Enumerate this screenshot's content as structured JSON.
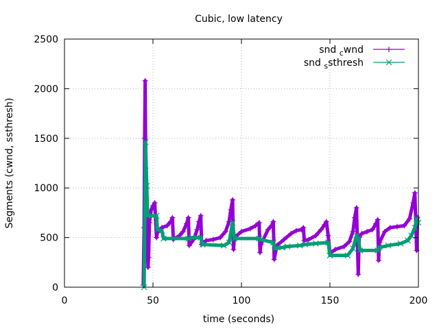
{
  "chart_data": {
    "type": "line",
    "title": "Cubic, low latency",
    "xlabel": "time (seconds)",
    "ylabel": "Segments (cwnd, ssthresh)",
    "xlim": [
      0,
      200
    ],
    "ylim": [
      0,
      2500
    ],
    "x_ticks": [
      "0",
      "50",
      "100",
      "150",
      "200"
    ],
    "y_ticks": [
      "0",
      "500",
      "1000",
      "1500",
      "2000",
      "2500"
    ],
    "grid": true,
    "legend_position": "top-right",
    "series": [
      {
        "name": "snd_cwnd",
        "legend_label": {
          "base": "snd",
          "sub": "c",
          "rest": "wnd"
        },
        "color": "#9400d3",
        "marker": "plus",
        "points": [
          [
            44.5,
            20
          ],
          [
            45,
            600
          ],
          [
            45.3,
            1500
          ],
          [
            45.6,
            2080
          ],
          [
            45.9,
            1200
          ],
          [
            46.2,
            800
          ],
          [
            46.8,
            450
          ],
          [
            47.2,
            200
          ],
          [
            47.5,
            300
          ],
          [
            48,
            650
          ],
          [
            49,
            780
          ],
          [
            50,
            820
          ],
          [
            51,
            850
          ],
          [
            52,
            500
          ],
          [
            52.5,
            550
          ],
          [
            55,
            600
          ],
          [
            58,
            620
          ],
          [
            60,
            660
          ],
          [
            61,
            700
          ],
          [
            61.5,
            480
          ],
          [
            65,
            520
          ],
          [
            67,
            560
          ],
          [
            69,
            640
          ],
          [
            70,
            700
          ],
          [
            70.5,
            420
          ],
          [
            73,
            480
          ],
          [
            75,
            580
          ],
          [
            76,
            660
          ],
          [
            77,
            720
          ],
          [
            77.5,
            430
          ],
          [
            80,
            470
          ],
          [
            84,
            480
          ],
          [
            88,
            500
          ],
          [
            91,
            560
          ],
          [
            93,
            660
          ],
          [
            94,
            780
          ],
          [
            95,
            880
          ],
          [
            95.5,
            380
          ],
          [
            96,
            500
          ],
          [
            100,
            560
          ],
          [
            105,
            590
          ],
          [
            108,
            620
          ],
          [
            110,
            650
          ],
          [
            110.5,
            350
          ],
          [
            111,
            430
          ],
          [
            115,
            580
          ],
          [
            117,
            620
          ],
          [
            118,
            660
          ],
          [
            118.5,
            280
          ],
          [
            120,
            420
          ],
          [
            124,
            480
          ],
          [
            128,
            540
          ],
          [
            131,
            570
          ],
          [
            134,
            580
          ],
          [
            135,
            600
          ],
          [
            135.5,
            470
          ],
          [
            138,
            480
          ],
          [
            142,
            520
          ],
          [
            145,
            580
          ],
          [
            147,
            630
          ],
          [
            148,
            660
          ],
          [
            149,
            520
          ],
          [
            150,
            340
          ],
          [
            153,
            380
          ],
          [
            158,
            410
          ],
          [
            161,
            460
          ],
          [
            163,
            560
          ],
          [
            164,
            700
          ],
          [
            165,
            800
          ],
          [
            166,
            130
          ],
          [
            166.5,
            500
          ],
          [
            168,
            540
          ],
          [
            171,
            560
          ],
          [
            174,
            580
          ],
          [
            176,
            640
          ],
          [
            177,
            680
          ],
          [
            177.5,
            270
          ],
          [
            178,
            450
          ],
          [
            181,
            560
          ],
          [
            184,
            600
          ],
          [
            188,
            610
          ],
          [
            192,
            620
          ],
          [
            195,
            690
          ],
          [
            197,
            850
          ],
          [
            198,
            950
          ],
          [
            199,
            370
          ],
          [
            199.5,
            700
          ]
        ]
      },
      {
        "name": "snd_ssthresh",
        "legend_label": {
          "base": "snd",
          "sub": "s",
          "rest": "sthresh"
        },
        "color": "#009e73",
        "marker": "cross",
        "points": [
          [
            45,
            0
          ],
          [
            45.8,
            1460
          ],
          [
            46.5,
            1020
          ],
          [
            47,
            720
          ],
          [
            52,
            720
          ],
          [
            52.5,
            580
          ],
          [
            55,
            570
          ],
          [
            56,
            490
          ],
          [
            70,
            490
          ],
          [
            72,
            500
          ],
          [
            77,
            500
          ],
          [
            78,
            430
          ],
          [
            90,
            420
          ],
          [
            93,
            450
          ],
          [
            95,
            650
          ],
          [
            96,
            490
          ],
          [
            110,
            490
          ],
          [
            111,
            480
          ],
          [
            118,
            450
          ],
          [
            119,
            390
          ],
          [
            123,
            400
          ],
          [
            126,
            410
          ],
          [
            133,
            420
          ],
          [
            136,
            430
          ],
          [
            142,
            440
          ],
          [
            149,
            450
          ],
          [
            150,
            320
          ],
          [
            160,
            320
          ],
          [
            163,
            390
          ],
          [
            165,
            520
          ],
          [
            166,
            490
          ],
          [
            167,
            370
          ],
          [
            177,
            370
          ],
          [
            178,
            400
          ],
          [
            183,
            420
          ],
          [
            190,
            440
          ],
          [
            194,
            470
          ],
          [
            196,
            520
          ],
          [
            198,
            600
          ],
          [
            199,
            690
          ],
          [
            200,
            650
          ]
        ]
      }
    ]
  }
}
